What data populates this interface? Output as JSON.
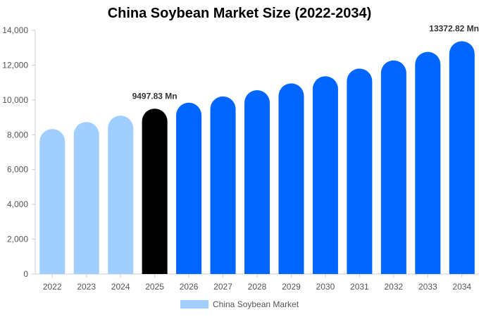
{
  "chart_data": {
    "type": "bar",
    "title": "China Soybean Market Size (2022-2034)",
    "categories": [
      "2022",
      "2023",
      "2024",
      "2025",
      "2026",
      "2027",
      "2028",
      "2029",
      "2030",
      "2031",
      "2032",
      "2033",
      "2034"
    ],
    "series": [
      {
        "name": "China Soybean Market",
        "values": [
          8330,
          8730,
          9100,
          9497.83,
          9840,
          10200,
          10560,
          10950,
          11360,
          11800,
          12270,
          12760,
          13372.82
        ]
      }
    ],
    "ylim": [
      0,
      14000
    ],
    "yticks": [
      0,
      2000,
      4000,
      6000,
      8000,
      10000,
      12000,
      14000
    ],
    "ytick_labels": [
      "0",
      "2,000",
      "4,000",
      "6,000",
      "8,000",
      "10,000",
      "12,000",
      "14,000"
    ],
    "annotations": [
      {
        "category": "2025",
        "text": "9497.83 Mn"
      },
      {
        "category": "2034",
        "text": "13372.82 Mn"
      }
    ],
    "grid": false,
    "legend_position": "bottom-center",
    "colors": {
      "historical": "#a0cfff",
      "current": "#000000",
      "forecast": "#0066ff"
    }
  }
}
